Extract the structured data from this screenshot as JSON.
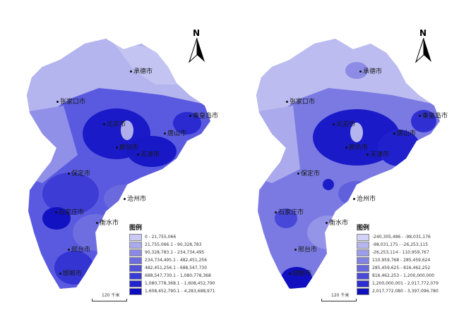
{
  "north_label": "N",
  "legend_title": "图例",
  "scale_label": "120 千米",
  "left_map": {
    "cities": [
      "承德市",
      "张家口市",
      "秦皇岛市",
      "北京市",
      "唐山市",
      "天津市",
      "廊坊市",
      "保定市",
      "沧州市",
      "石家庄市",
      "衡水市",
      "邢台市",
      "邯郸市"
    ],
    "legend": [
      {
        "label": "0 - 21,755,066",
        "color": "#c9c9f4"
      },
      {
        "label": "21,755,066.1 - 90,328,783",
        "color": "#a9a9ec"
      },
      {
        "label": "90,328,783.1 - 234,734,495",
        "color": "#8a8ae6"
      },
      {
        "label": "234,734,495.1 - 482,451,256",
        "color": "#6c6ce0"
      },
      {
        "label": "482,451,256.1 - 688,547,730",
        "color": "#5050db"
      },
      {
        "label": "688,547,730.1 - 1,080,778,368",
        "color": "#3a3ad6"
      },
      {
        "label": "1,080,778,368.1 - 1,608,452,790",
        "color": "#2424cf"
      },
      {
        "label": "1,608,452,790.1 - 4,283,688,971",
        "color": "#0d0dbf"
      }
    ]
  },
  "right_map": {
    "cities": [
      "承德市",
      "张家口市",
      "秦皇岛市",
      "北京市",
      "唐山市",
      "天津市",
      "廊坊市",
      "保定市",
      "沧州市",
      "石家庄市",
      "衡水市",
      "邢台市",
      "邯郸市"
    ],
    "legend": [
      {
        "label": "-240,305,486 - -98,031,176",
        "color": "#d2d2f6"
      },
      {
        "label": "-98,031,175 - -26,253,115",
        "color": "#b6b6ef"
      },
      {
        "label": "-26,253,114 - 110,959,767",
        "color": "#9c9ce9"
      },
      {
        "label": "110,959,768 - 285,459,624",
        "color": "#8282e3"
      },
      {
        "label": "285,459,625 - 816,462,252",
        "color": "#6666dd"
      },
      {
        "label": "816,462,253 - 1,200,000,000",
        "color": "#4a4ad7"
      },
      {
        "label": "1,200,000,001 - 2,017,772,079",
        "color": "#2c2cd0"
      },
      {
        "label": "2,017,772,080 - 3,397,096,780",
        "color": "#0f0fbd"
      }
    ]
  }
}
